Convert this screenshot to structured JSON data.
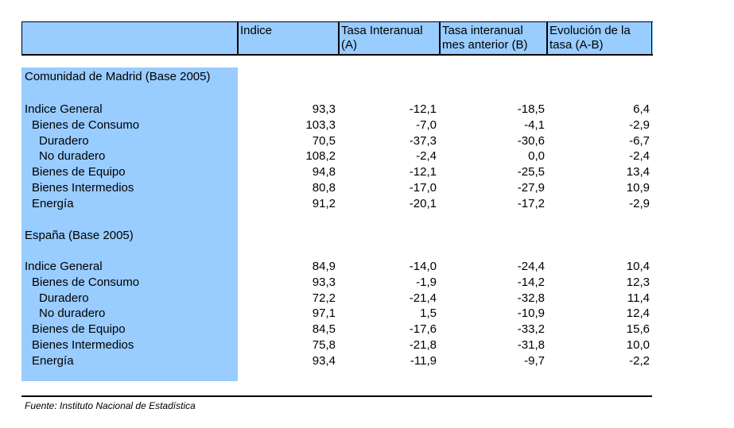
{
  "header": {
    "columns": [
      "",
      "Indice",
      "Tasa Interanual\n(A)",
      "Tasa interanual\nmes anterior (B)",
      "Evolución de la\ntasa (A-B)"
    ]
  },
  "sections": [
    {
      "title": "Comunidad de Madrid (Base 2005)",
      "rows": [
        {
          "label": "Indice General",
          "level": 0,
          "values": [
            "93,3",
            "-12,1",
            "-18,5",
            "6,4"
          ]
        },
        {
          "label": "Bienes de Consumo",
          "level": 1,
          "values": [
            "103,3",
            "-7,0",
            "-4,1",
            "-2,9"
          ]
        },
        {
          "label": "Duradero",
          "level": 2,
          "values": [
            "70,5",
            "-37,3",
            "-30,6",
            "-6,7"
          ]
        },
        {
          "label": "No duradero",
          "level": 2,
          "values": [
            "108,2",
            "-2,4",
            "0,0",
            "-2,4"
          ]
        },
        {
          "label": "Bienes de Equipo",
          "level": 1,
          "values": [
            "94,8",
            "-12,1",
            "-25,5",
            "13,4"
          ]
        },
        {
          "label": "Bienes Intermedios",
          "level": 1,
          "values": [
            "80,8",
            "-17,0",
            "-27,9",
            "10,9"
          ]
        },
        {
          "label": "Energía",
          "level": 1,
          "values": [
            "91,2",
            "-20,1",
            "-17,2",
            "-2,9"
          ]
        }
      ]
    },
    {
      "title": "España (Base 2005)",
      "rows": [
        {
          "label": "Indice General",
          "level": 0,
          "values": [
            "84,9",
            "-14,0",
            "-24,4",
            "10,4"
          ]
        },
        {
          "label": "Bienes de Consumo",
          "level": 1,
          "values": [
            "93,3",
            "-1,9",
            "-14,2",
            "12,3"
          ]
        },
        {
          "label": "Duradero",
          "level": 2,
          "values": [
            "72,2",
            "-21,4",
            "-32,8",
            "11,4"
          ]
        },
        {
          "label": "No duradero",
          "level": 2,
          "values": [
            "97,1",
            "1,5",
            "-10,9",
            "12,4"
          ]
        },
        {
          "label": "Bienes de Equipo",
          "level": 1,
          "values": [
            "84,5",
            "-17,6",
            "-33,2",
            "15,6"
          ]
        },
        {
          "label": "Bienes Intermedios",
          "level": 1,
          "values": [
            "75,8",
            "-21,8",
            "-31,8",
            "10,0"
          ]
        },
        {
          "label": "Energía",
          "level": 1,
          "values": [
            "93,4",
            "-11,9",
            "-9,7",
            "-2,2"
          ]
        }
      ]
    }
  ],
  "source": "Fuente: Instituto Nacional de Estadística"
}
